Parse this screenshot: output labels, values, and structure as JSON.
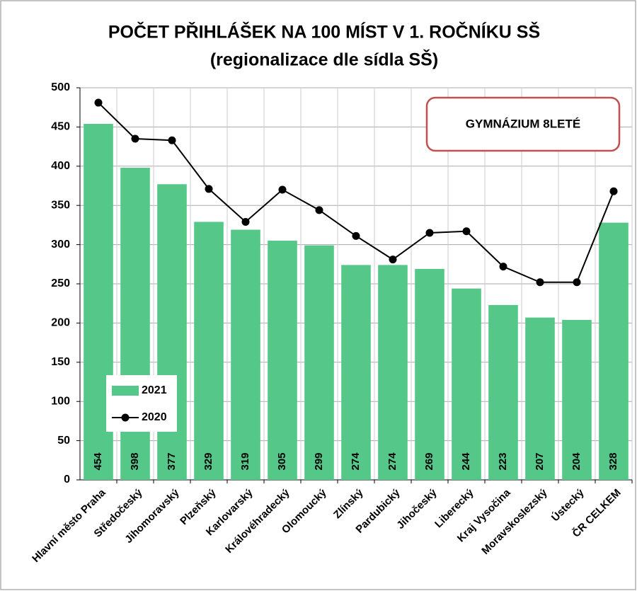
{
  "chart_data": {
    "type": "bar",
    "title": "POČET PŘIHLÁŠEK NA 100 MÍST V 1. ROČNÍKU SŠ",
    "subtitle": "(regionalizace dle sídla SŠ)",
    "annotation": "GYMNÁZIUM 8LETÉ",
    "categories": [
      "Hlavní město Praha",
      "Středočeský",
      "Jihomoravský",
      "Plzeňský",
      "Karlovarský",
      "Královéhradecký",
      "Olomoucký",
      "Zlínský",
      "Pardubický",
      "Jihočeský",
      "Liberecký",
      "Kraj Vysočina",
      "Moravskoslezský",
      "Ústecký",
      "ČR CELKEM"
    ],
    "series": [
      {
        "name": "2021",
        "type": "bar",
        "color": "#55c788",
        "values": [
          454,
          398,
          377,
          329,
          319,
          305,
          299,
          274,
          274,
          269,
          244,
          223,
          207,
          204,
          328
        ]
      },
      {
        "name": "2020",
        "type": "line",
        "color": "#000000",
        "values": [
          481,
          435,
          433,
          371,
          329,
          370,
          344,
          311,
          281,
          315,
          317,
          272,
          252,
          252,
          368
        ]
      }
    ],
    "ylim": [
      0,
      500
    ],
    "yticks": [
      0,
      50,
      100,
      150,
      200,
      250,
      300,
      350,
      400,
      450,
      500
    ],
    "grid": true,
    "legend": "lower-left"
  }
}
